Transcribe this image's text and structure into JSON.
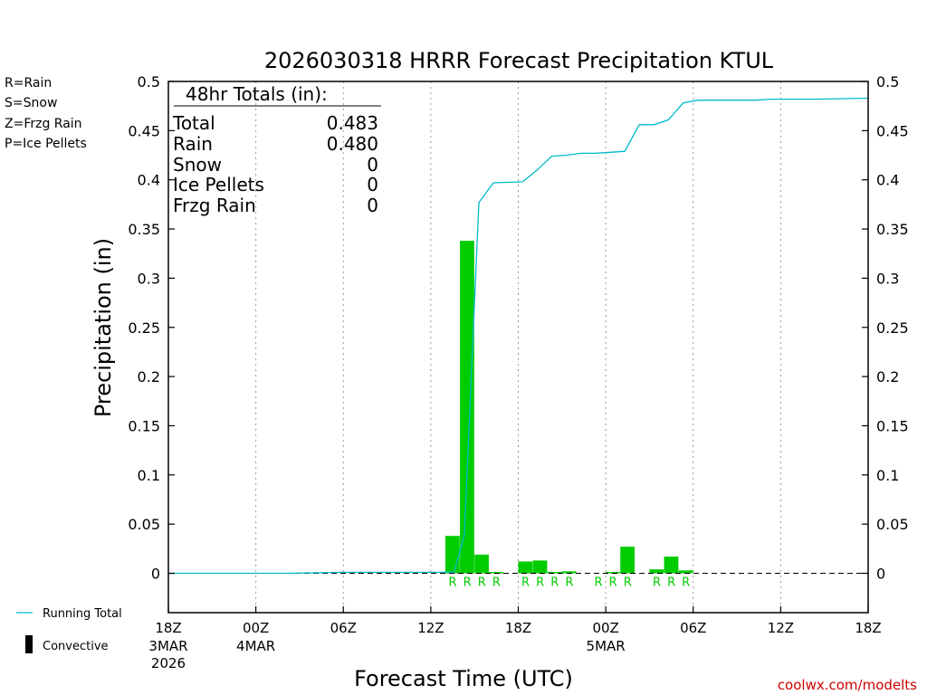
{
  "chart_data": {
    "type": "bar",
    "title": "2026030318 HRRR Forecast Precipitation KTUL",
    "ylabel": "Precipitation  (in)",
    "xlabel": "Forecast Time (UTC)",
    "ylim": [
      -0.04,
      0.5
    ],
    "xlim_hours": [
      0,
      48
    ],
    "y_ticks": [
      0,
      0.05,
      0.1,
      0.15,
      0.2,
      0.25,
      0.3,
      0.35,
      0.4,
      0.45,
      0.5
    ],
    "y_tick_labels": [
      "0",
      "0.05",
      "0.1",
      "0.15",
      "0.2",
      "0.25",
      "0.3",
      "0.35",
      "0.4",
      "0.45",
      "0.5"
    ],
    "x_ticks": [
      {
        "hour": 0,
        "label": "18Z",
        "date": "3MAR",
        "year": "2026"
      },
      {
        "hour": 6,
        "label": "00Z",
        "date": "4MAR",
        "year": ""
      },
      {
        "hour": 12,
        "label": "06Z",
        "date": "",
        "year": ""
      },
      {
        "hour": 18,
        "label": "12Z",
        "date": "",
        "year": ""
      },
      {
        "hour": 24,
        "label": "18Z",
        "date": "",
        "year": ""
      },
      {
        "hour": 30,
        "label": "00Z",
        "date": "5MAR",
        "year": ""
      },
      {
        "hour": 36,
        "label": "06Z",
        "date": "",
        "year": ""
      },
      {
        "hour": 42,
        "label": "12Z",
        "date": "",
        "year": ""
      },
      {
        "hour": 48,
        "label": "18Z",
        "date": "",
        "year": ""
      }
    ],
    "bars": [
      {
        "hour": 20,
        "value": 0.038,
        "ptype": "R"
      },
      {
        "hour": 21,
        "value": 0.338,
        "ptype": "R"
      },
      {
        "hour": 22,
        "value": 0.019,
        "ptype": "R"
      },
      {
        "hour": 23,
        "value": 0.001,
        "ptype": "R"
      },
      {
        "hour": 25,
        "value": 0.012,
        "ptype": "R"
      },
      {
        "hour": 26,
        "value": 0.013,
        "ptype": "R"
      },
      {
        "hour": 27,
        "value": 0.001,
        "ptype": "R"
      },
      {
        "hour": 28,
        "value": 0.002,
        "ptype": "R"
      },
      {
        "hour": 30,
        "value": 0.0,
        "ptype": "R"
      },
      {
        "hour": 31,
        "value": 0.001,
        "ptype": "R"
      },
      {
        "hour": 32,
        "value": 0.027,
        "ptype": "R"
      },
      {
        "hour": 34,
        "value": 0.004,
        "ptype": "R"
      },
      {
        "hour": 35,
        "value": 0.017,
        "ptype": "R"
      },
      {
        "hour": 36,
        "value": 0.003,
        "ptype": "R"
      }
    ],
    "running_total": {
      "name": "Running Total",
      "hours": [
        0,
        4,
        8,
        12,
        16,
        18.9,
        19.6,
        20.3,
        21.3,
        22.3,
        24.3,
        25.3,
        26.3,
        27.3,
        28.3,
        29.3,
        30.3,
        31.3,
        32.3,
        33.3,
        34.3,
        35.3,
        36.3,
        40.3,
        41.3,
        44.3,
        48
      ],
      "values": [
        0,
        0,
        0,
        0.001,
        0.001,
        0.001,
        0.001,
        0.039,
        0.377,
        0.397,
        0.398,
        0.41,
        0.424,
        0.425,
        0.427,
        0.427,
        0.428,
        0.429,
        0.456,
        0.456,
        0.461,
        0.478,
        0.481,
        0.481,
        0.482,
        0.482,
        0.483
      ]
    },
    "colors": {
      "rain": "#00cc00",
      "snow": "#3355ee",
      "frzg_rain": "#f08020",
      "ice_pellets": "#ee1199",
      "running_total": "#00bbcc",
      "gridline": "#999999"
    }
  },
  "ptype_legend": [
    {
      "label": "R=Rain",
      "color": "#00cc00"
    },
    {
      "label": "S=Snow",
      "color": "#3355ee"
    },
    {
      "label": "Z=Frzg Rain",
      "color": "#f08020"
    },
    {
      "label": "P=Ice Pellets",
      "color": "#ee1199"
    }
  ],
  "totals_box": {
    "heading": "48hr Totals (in):",
    "rows": [
      {
        "label": "Total",
        "value": "0.483"
      },
      {
        "label": "Rain",
        "value": "0.480"
      },
      {
        "label": "Snow",
        "value": "0"
      },
      {
        "label": "Ice Pellets",
        "value": "0"
      },
      {
        "label": "Frzg Rain",
        "value": "0"
      }
    ]
  },
  "bottom_legend": {
    "running_total": "Running Total",
    "convective": "Convective"
  },
  "credit": "coolwx.com/modelts"
}
